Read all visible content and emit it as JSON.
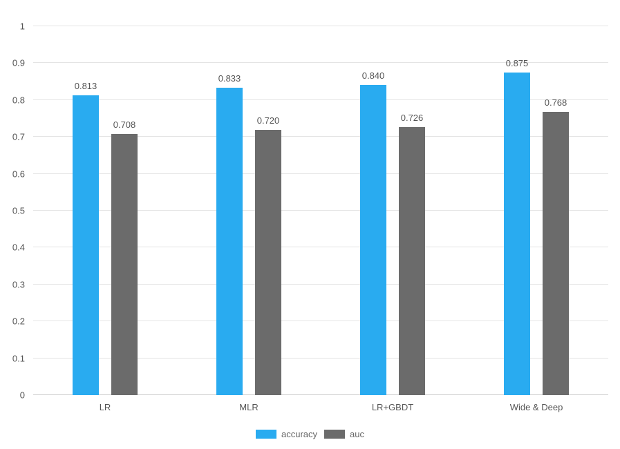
{
  "chart_data": {
    "type": "bar",
    "title": "",
    "categories": [
      "LR",
      "MLR",
      "LR+GBDT",
      "Wide & Deep"
    ],
    "series": [
      {
        "name": "accuracy",
        "color": "#29abf0",
        "values": [
          0.813,
          0.833,
          0.84,
          0.875
        ],
        "value_labels": [
          "0.813",
          "0.833",
          "0.840",
          "0.875"
        ]
      },
      {
        "name": "auc",
        "color": "#6b6b6b",
        "values": [
          0.708,
          0.72,
          0.726,
          0.768
        ],
        "value_labels": [
          "0.708",
          "0.720",
          "0.726",
          "0.768"
        ]
      }
    ],
    "xlabel": "",
    "ylabel": "",
    "ylim": [
      0,
      1
    ],
    "yticks": [
      "0",
      "0.1",
      "0.2",
      "0.3",
      "0.4",
      "0.5",
      "0.6",
      "0.7",
      "0.8",
      "0.9",
      "1"
    ],
    "grid": true,
    "legend_position": "bottom",
    "legend": [
      {
        "label": "accuracy",
        "color": "#29abf0"
      },
      {
        "label": "auc",
        "color": "#6b6b6b"
      }
    ]
  }
}
